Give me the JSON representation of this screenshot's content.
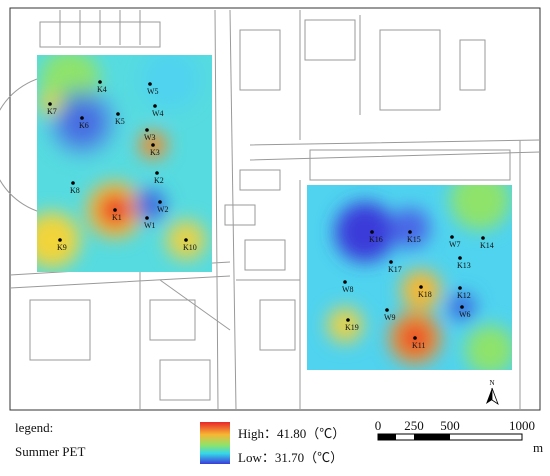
{
  "points": [
    "K4",
    "W5",
    "K7",
    "K6",
    "K5",
    "W4",
    "W3",
    "K3",
    "K2",
    "K8",
    "W2",
    "K1",
    "W1",
    "K9",
    "K10",
    "K16",
    "K15",
    "W7",
    "K14",
    "K17",
    "W8",
    "K13",
    "K18",
    "K12",
    "W9",
    "W6",
    "K19",
    "K11"
  ],
  "legend": {
    "title": "legend:",
    "item": "Summer PET",
    "high": "High：41.80（℃）",
    "low": "Low：31.70（℃）"
  },
  "scale_bar": {
    "ticks": [
      "0",
      "250",
      "500",
      "1000"
    ],
    "unit": "m"
  },
  "north": "N"
}
